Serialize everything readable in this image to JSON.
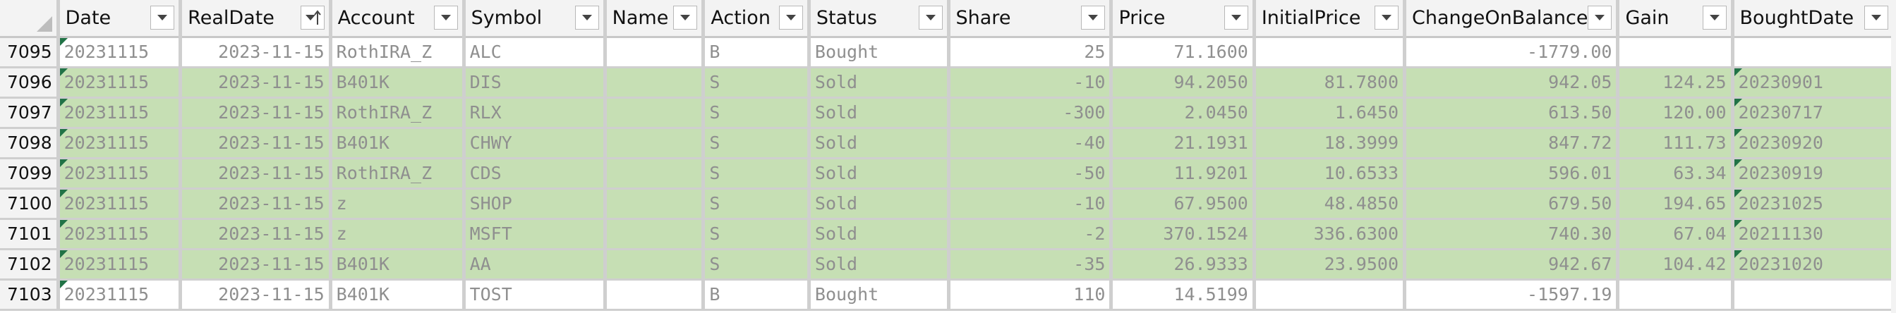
{
  "columns": {
    "date": "Date",
    "realdate": "RealDate",
    "account": "Account",
    "symbol": "Symbol",
    "name": "Name",
    "action": "Action",
    "status": "Status",
    "share": "Share",
    "price": "Price",
    "initialprice": "InitialPrice",
    "change": "ChangeOnBalance",
    "gain": "Gain",
    "boughtdate": "BoughtDate"
  },
  "sort": {
    "column": "RealDate",
    "direction": "descending"
  },
  "rows": [
    {
      "row": "7095",
      "date": "20231115",
      "realdate": "2023-11-15",
      "account": "RothIRA_Z",
      "symbol": "ALC",
      "name": "",
      "action": "B",
      "status": "Bought",
      "share": "25",
      "price": "71.1600",
      "initialprice": "",
      "change": "-1779.00",
      "gain": "",
      "boughtdate": ""
    },
    {
      "row": "7096",
      "date": "20231115",
      "realdate": "2023-11-15",
      "account": "B401K",
      "symbol": "DIS",
      "name": "",
      "action": "S",
      "status": "Sold",
      "share": "-10",
      "price": "94.2050",
      "initialprice": "81.7800",
      "change": "942.05",
      "gain": "124.25",
      "boughtdate": "20230901"
    },
    {
      "row": "7097",
      "date": "20231115",
      "realdate": "2023-11-15",
      "account": "RothIRA_Z",
      "symbol": "RLX",
      "name": "",
      "action": "S",
      "status": "Sold",
      "share": "-300",
      "price": "2.0450",
      "initialprice": "1.6450",
      "change": "613.50",
      "gain": "120.00",
      "boughtdate": "20230717"
    },
    {
      "row": "7098",
      "date": "20231115",
      "realdate": "2023-11-15",
      "account": "B401K",
      "symbol": "CHWY",
      "name": "",
      "action": "S",
      "status": "Sold",
      "share": "-40",
      "price": "21.1931",
      "initialprice": "18.3999",
      "change": "847.72",
      "gain": "111.73",
      "boughtdate": "20230920"
    },
    {
      "row": "7099",
      "date": "20231115",
      "realdate": "2023-11-15",
      "account": "RothIRA_Z",
      "symbol": "CDS",
      "name": "",
      "action": "S",
      "status": "Sold",
      "share": "-50",
      "price": "11.9201",
      "initialprice": "10.6533",
      "change": "596.01",
      "gain": "63.34",
      "boughtdate": "20230919"
    },
    {
      "row": "7100",
      "date": "20231115",
      "realdate": "2023-11-15",
      "account": "z",
      "symbol": "SHOP",
      "name": "",
      "action": "S",
      "status": "Sold",
      "share": "-10",
      "price": "67.9500",
      "initialprice": "48.4850",
      "change": "679.50",
      "gain": "194.65",
      "boughtdate": "20231025"
    },
    {
      "row": "7101",
      "date": "20231115",
      "realdate": "2023-11-15",
      "account": "z",
      "symbol": "MSFT",
      "name": "",
      "action": "S",
      "status": "Sold",
      "share": "-2",
      "price": "370.1524",
      "initialprice": "336.6300",
      "change": "740.30",
      "gain": "67.04",
      "boughtdate": "20211130"
    },
    {
      "row": "7102",
      "date": "20231115",
      "realdate": "2023-11-15",
      "account": "B401K",
      "symbol": "AA",
      "name": "",
      "action": "S",
      "status": "Sold",
      "share": "-35",
      "price": "26.9333",
      "initialprice": "23.9500",
      "change": "942.67",
      "gain": "104.42",
      "boughtdate": "20231020"
    },
    {
      "row": "7103",
      "date": "20231115",
      "realdate": "2023-11-15",
      "account": "B401K",
      "symbol": "TOST",
      "name": "",
      "action": "B",
      "status": "Bought",
      "share": "110",
      "price": "14.5199",
      "initialprice": "",
      "change": "-1597.19",
      "gain": "",
      "boughtdate": ""
    }
  ],
  "colors": {
    "sold_row_fill": "#c6dfb4",
    "cell_text": "#8f8f8f",
    "header_bg": "#f3f3f3",
    "gridline": "#cfcfcf"
  },
  "icons": {
    "filter": "chevron-down-icon",
    "sorted_filter": "sort-descending-filter-icon"
  }
}
